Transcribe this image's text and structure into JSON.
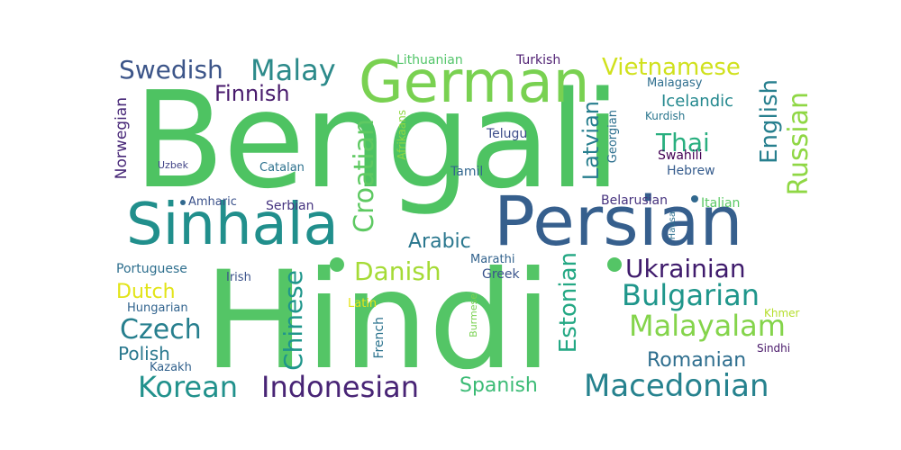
{
  "words": {
    "bengali": "Bengali",
    "hindi": "Hindi",
    "persian": "Persian",
    "sinhala": "Sinhala",
    "german": "German",
    "malay": "Malay",
    "swedish": "Swedish",
    "finnish": "Finnish",
    "norwegian": "Norwegian",
    "uzbek": "Uzbek",
    "catalan": "Catalan",
    "amharic": "Amharic",
    "serbian": "Serbian",
    "croatian": "Croatian",
    "afrikaans": "Afrikaans",
    "lithuanian": "Lithuanian",
    "turkish": "Turkish",
    "vietnamese": "Vietnamese",
    "malagasy": "Malagasy",
    "icelandic": "Icelandic",
    "kurdish": "Kurdish",
    "english": "English",
    "russian": "Russian",
    "latvian": "Latvian",
    "georgian": "Georgian",
    "thai": "Thai",
    "telugu": "Telugu",
    "tamil": "Tamil",
    "swahili": "Swahili",
    "hebrew": "Hebrew",
    "belarusian": "Belarusian",
    "italian": "Italian",
    "hausa": "Hausa",
    "arabic": "Arabic",
    "danish": "Danish",
    "chinese": "Chinese",
    "marathi": "Marathi",
    "greek": "Greek",
    "estonian": "Estonian",
    "ukrainian": "Ukrainian",
    "bulgarian": "Bulgarian",
    "portuguese": "Portuguese",
    "irish": "Irish",
    "dutch": "Dutch",
    "latin": "Latin",
    "hungarian": "Hungarian",
    "burmese": "Burmese",
    "french": "French",
    "malayalam": "Malayalam",
    "czech": "Czech",
    "khmer": "Khmer",
    "sindhi": "Sindhi",
    "romanian": "Romanian",
    "polish": "Polish",
    "kazakh": "Kazakh",
    "korean": "Korean",
    "indonesian": "Indonesian",
    "spanish": "Spanish",
    "macedonian": "Macedonian"
  },
  "colors": {
    "background": "#ffffff",
    "palette": "viridis"
  }
}
